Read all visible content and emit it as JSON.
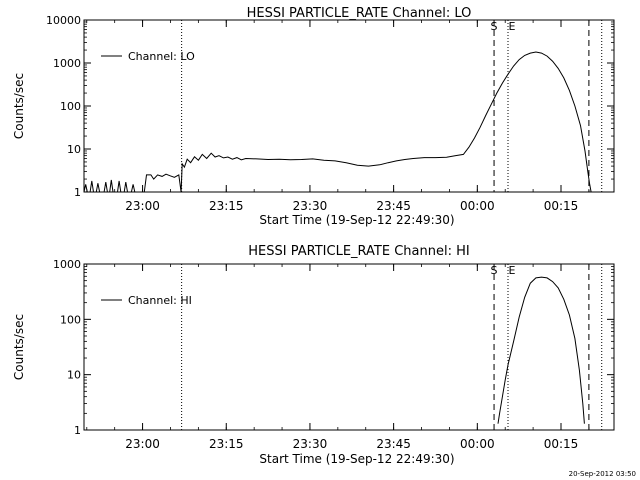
{
  "footer_timestamp": "20-Sep-2012 03:50",
  "chart_data": [
    {
      "type": "line",
      "title": "HESSI PARTICLE_RATE Channel: LO",
      "xlabel": "Start Time (19-Sep-12 22:49:30)",
      "ylabel": "Counts/sec",
      "y_scale": "log",
      "ylim": [
        1,
        10000
      ],
      "x_unit": "minutes after 22:49:30",
      "xlim": [
        0,
        95
      ],
      "x_ticks": [
        {
          "x": 10.5,
          "label": "23:00"
        },
        {
          "x": 25.5,
          "label": "23:15"
        },
        {
          "x": 40.5,
          "label": "23:30"
        },
        {
          "x": 55.5,
          "label": "23:45"
        },
        {
          "x": 70.5,
          "label": "00:00"
        },
        {
          "x": 85.5,
          "label": "00:15"
        }
      ],
      "y_ticks": [
        {
          "y": 1,
          "label": "1"
        },
        {
          "y": 10,
          "label": "10"
        },
        {
          "y": 100,
          "label": "100"
        },
        {
          "y": 1000,
          "label": "1000"
        },
        {
          "y": 10000,
          "label": "10000"
        }
      ],
      "legend": {
        "label": "Channel: LO",
        "placement": "top-left"
      },
      "markers": [
        {
          "x": 17.5,
          "style": "dotted"
        },
        {
          "x": 73.5,
          "style": "dashed",
          "label": "S"
        },
        {
          "x": 76.0,
          "style": "dotted",
          "label": "E"
        },
        {
          "x": 90.5,
          "style": "dashed"
        },
        {
          "x": 92.8,
          "style": "dotted"
        }
      ],
      "series": [
        {
          "values": [
            [
              0,
              1
            ],
            [
              0.3,
              1.5
            ],
            [
              0.6,
              1
            ],
            [
              1.1,
              1
            ],
            [
              1.4,
              1.8
            ],
            [
              1.7,
              1
            ],
            [
              2.2,
              1
            ],
            [
              2.5,
              1.6
            ],
            [
              2.8,
              1
            ],
            [
              3.6,
              1
            ],
            [
              3.9,
              1.7
            ],
            [
              4.2,
              1
            ],
            [
              4.6,
              1
            ],
            [
              4.9,
              1.9
            ],
            [
              5.2,
              1
            ],
            [
              6.0,
              1
            ],
            [
              6.3,
              1.8
            ],
            [
              6.6,
              1
            ],
            [
              7.2,
              1
            ],
            [
              7.5,
              1.7
            ],
            [
              7.8,
              1
            ],
            [
              8.5,
              1
            ],
            [
              8.8,
              1.5
            ],
            [
              9.1,
              1
            ],
            [
              10.8,
              1
            ],
            [
              11.2,
              2.5
            ],
            [
              12.0,
              2.5
            ],
            [
              12.5,
              2.0
            ],
            [
              13.2,
              2.5
            ],
            [
              14.0,
              2.3
            ],
            [
              14.7,
              2.6
            ],
            [
              15.4,
              2.4
            ],
            [
              16.2,
              2.2
            ],
            [
              17.0,
              2.5
            ],
            [
              17.4,
              1
            ],
            [
              17.6,
              4.5
            ],
            [
              18.0,
              3.8
            ],
            [
              18.5,
              5.8
            ],
            [
              19.1,
              4.8
            ],
            [
              19.8,
              6.6
            ],
            [
              20.5,
              5.5
            ],
            [
              21.2,
              7.5
            ],
            [
              22.0,
              6.0
            ],
            [
              22.8,
              8.0
            ],
            [
              23.5,
              6.5
            ],
            [
              24.2,
              7.0
            ],
            [
              25.0,
              6.2
            ],
            [
              25.8,
              6.5
            ],
            [
              26.6,
              5.8
            ],
            [
              27.4,
              6.3
            ],
            [
              28.2,
              5.6
            ],
            [
              29.0,
              6.0
            ],
            [
              31,
              5.9
            ],
            [
              33,
              5.7
            ],
            [
              35,
              5.8
            ],
            [
              37,
              5.6
            ],
            [
              39,
              5.7
            ],
            [
              41,
              5.9
            ],
            [
              43,
              5.5
            ],
            [
              45,
              5.3
            ],
            [
              47,
              4.8
            ],
            [
              49,
              4.2
            ],
            [
              51,
              4.0
            ],
            [
              53,
              4.3
            ],
            [
              54.5,
              4.8
            ],
            [
              56,
              5.3
            ],
            [
              57.5,
              5.7
            ],
            [
              59,
              6.0
            ],
            [
              61,
              6.3
            ],
            [
              63,
              6.3
            ],
            [
              65,
              6.4
            ],
            [
              66.5,
              7.0
            ],
            [
              68,
              7.5
            ],
            [
              69,
              11
            ],
            [
              70,
              18
            ],
            [
              71,
              32
            ],
            [
              72,
              60
            ],
            [
              73,
              110
            ],
            [
              74,
              200
            ],
            [
              75,
              340
            ],
            [
              76,
              550
            ],
            [
              77,
              850
            ],
            [
              78,
              1200
            ],
            [
              79,
              1500
            ],
            [
              80,
              1700
            ],
            [
              81,
              1800
            ],
            [
              82,
              1700
            ],
            [
              83,
              1450
            ],
            [
              84,
              1100
            ],
            [
              85,
              750
            ],
            [
              86,
              450
            ],
            [
              87,
              230
            ],
            [
              88,
              100
            ],
            [
              89,
              35
            ],
            [
              89.8,
              9
            ],
            [
              90.3,
              3
            ],
            [
              90.6,
              1.6
            ],
            [
              90.9,
              1
            ]
          ]
        }
      ]
    },
    {
      "type": "line",
      "title": "HESSI PARTICLE_RATE Channel: HI",
      "xlabel": "Start Time (19-Sep-12 22:49:30)",
      "ylabel": "Counts/sec",
      "y_scale": "log",
      "ylim": [
        1,
        1000
      ],
      "x_unit": "minutes after 22:49:30",
      "xlim": [
        0,
        95
      ],
      "x_ticks": [
        {
          "x": 10.5,
          "label": "23:00"
        },
        {
          "x": 25.5,
          "label": "23:15"
        },
        {
          "x": 40.5,
          "label": "23:30"
        },
        {
          "x": 55.5,
          "label": "23:45"
        },
        {
          "x": 70.5,
          "label": "00:00"
        },
        {
          "x": 85.5,
          "label": "00:15"
        }
      ],
      "y_ticks": [
        {
          "y": 1,
          "label": "1"
        },
        {
          "y": 10,
          "label": "10"
        },
        {
          "y": 100,
          "label": "100"
        },
        {
          "y": 1000,
          "label": "1000"
        }
      ],
      "legend": {
        "label": "Channel: HI",
        "placement": "top-left"
      },
      "markers": [
        {
          "x": 17.5,
          "style": "dotted"
        },
        {
          "x": 73.5,
          "style": "dashed",
          "label": "S"
        },
        {
          "x": 76.0,
          "style": "dotted",
          "label": "E"
        },
        {
          "x": 90.5,
          "style": "dashed"
        },
        {
          "x": 92.8,
          "style": "dotted"
        }
      ],
      "series": [
        {
          "values": [
            [
              74.2,
              1.3
            ],
            [
              74.5,
              2
            ],
            [
              75,
              4
            ],
            [
              75.5,
              8
            ],
            [
              76,
              15
            ],
            [
              77,
              40
            ],
            [
              78,
              110
            ],
            [
              79,
              250
            ],
            [
              80,
              450
            ],
            [
              81,
              560
            ],
            [
              82,
              580
            ],
            [
              83,
              560
            ],
            [
              84,
              480
            ],
            [
              85,
              370
            ],
            [
              86,
              230
            ],
            [
              87,
              120
            ],
            [
              88,
              45
            ],
            [
              88.8,
              12
            ],
            [
              89.4,
              3
            ],
            [
              89.7,
              1.3
            ]
          ]
        }
      ]
    }
  ]
}
